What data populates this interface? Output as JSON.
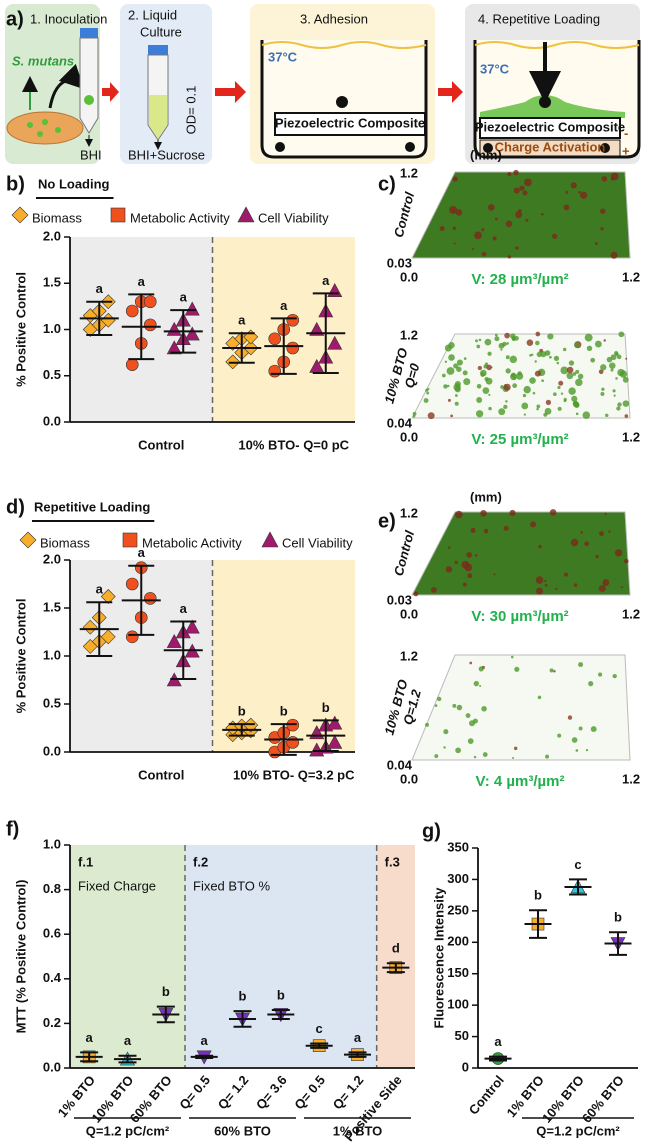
{
  "diagram": {
    "label": "a)",
    "step1": "1. Inoculation",
    "organism": "S. mutans",
    "medium1": "BHI",
    "step2_line1": "2. Liquid",
    "step2_line2": "Culture",
    "od": "OD= 0.1",
    "medium2": "BHI+Sucrose",
    "step3": "3. Adhesion",
    "temp3": "37°C",
    "composite3": "Piezoelectric Composite",
    "step4": "4. Repetitive Loading",
    "temp4": "37°C",
    "composite4": "Piezoelectric Composite",
    "activation": "Charge Activation",
    "minus": "-",
    "plus": "+"
  },
  "images": [
    {
      "label": "c)",
      "unit": "(mm)",
      "views": [
        {
          "name": [
            "Control"
          ],
          "top": "1.2",
          "bottom": "0.03",
          "left": "0.0",
          "right": "1.2",
          "volume": "V: 28 µm³/µm²"
        },
        {
          "name": [
            "10% BTO",
            "Q=0"
          ],
          "top": "1.2",
          "bottom": "0.04",
          "left": "0.0",
          "right": "1.2",
          "volume": "V: 25 µm³/µm²"
        }
      ]
    },
    {
      "label": "e)",
      "unit": "(mm)",
      "views": [
        {
          "name": [
            "Control"
          ],
          "top": "1.2",
          "bottom": "0.03",
          "left": "0.0",
          "right": "1.2",
          "volume": "V: 30 µm³/µm²"
        },
        {
          "name": [
            "10% BTO",
            "Q=1.2"
          ],
          "top": "1.2",
          "bottom": "0.04",
          "left": "0.0",
          "right": "1.2",
          "volume": "V: 4 µm³/µm²"
        }
      ]
    }
  ],
  "chart_data": [
    {
      "type": "dotplot",
      "panel": "b)",
      "title": "No Loading",
      "ylabel": "% Positive Control",
      "categories": [
        "Control",
        "10% BTO- Q=0 pC"
      ],
      "background_colors": [
        "#ececec",
        "#fdf0c8"
      ],
      "ylim": [
        0,
        2
      ],
      "yticks": [
        {
          "value": 0,
          "label": "0.0"
        },
        0.5,
        {
          "value": 1,
          "label": "1.0"
        },
        1.5,
        {
          "value": 2,
          "label": "2.0"
        }
      ],
      "series": [
        {
          "name": "Biomass",
          "color": "#f8ae2b",
          "marker": "diamond",
          "values": [
            1.12,
            0.8
          ],
          "errors": [
            0.18,
            0.16
          ],
          "letters": [
            "a",
            "a"
          ],
          "points": [
            [
              1.0,
              1.05,
              1.1,
              1.15,
              1.2,
              1.3
            ],
            [
              0.65,
              0.75,
              0.8,
              0.85,
              0.9,
              0.92
            ]
          ]
        },
        {
          "name": "Metabolic Activity",
          "color": "#f0501e",
          "marker": "circle",
          "values": [
            1.03,
            0.82
          ],
          "errors": [
            0.35,
            0.3
          ],
          "letters": [
            "a",
            "a"
          ],
          "points": [
            [
              0.62,
              0.85,
              1.05,
              1.2,
              1.3,
              1.3
            ],
            [
              0.55,
              0.65,
              0.8,
              0.9,
              1.0,
              1.1
            ]
          ]
        },
        {
          "name": "Cell Viability",
          "color": "#a01a6b",
          "marker": "triangle",
          "values": [
            0.98,
            0.96
          ],
          "errors": [
            0.23,
            0.43
          ],
          "letters": [
            "a",
            "a"
          ],
          "points": [
            [
              0.8,
              0.9,
              0.95,
              1.0,
              1.1,
              1.22
            ],
            [
              0.6,
              0.7,
              0.85,
              1.0,
              1.2,
              1.42
            ]
          ]
        }
      ]
    },
    {
      "type": "dotplot",
      "panel": "d)",
      "title": "Repetitive Loading",
      "ylabel": "% Positive Control",
      "categories": [
        "Control",
        "10% BTO- Q=3.2 pC"
      ],
      "background_colors": [
        "#ececec",
        "#fdf0c8"
      ],
      "ylim": [
        0,
        2
      ],
      "yticks": [
        {
          "value": 0,
          "label": "0.0"
        },
        0.5,
        {
          "value": 1,
          "label": "1.0"
        },
        1.5,
        {
          "value": 2,
          "label": "2.0"
        }
      ],
      "series": [
        {
          "name": "Biomass",
          "color": "#f8ae2b",
          "marker": "diamond",
          "values": [
            1.28,
            0.23
          ],
          "errors": [
            0.28,
            0.06
          ],
          "letters": [
            "a",
            "b"
          ],
          "points": [
            [
              1.1,
              1.15,
              1.2,
              1.3,
              1.4,
              1.62
            ],
            [
              0.18,
              0.2,
              0.22,
              0.25,
              0.27,
              0.28
            ]
          ]
        },
        {
          "name": "Metabolic Activity",
          "color": "#f0501e",
          "marker": "circle",
          "values": [
            1.58,
            0.13
          ],
          "errors": [
            0.36,
            0.16
          ],
          "letters": [
            "a",
            "b"
          ],
          "points": [
            [
              1.2,
              1.4,
              1.6,
              1.75,
              1.92
            ],
            [
              0.0,
              0.05,
              0.1,
              0.15,
              0.2,
              0.28
            ]
          ]
        },
        {
          "name": "Cell Viability",
          "color": "#a01a6b",
          "marker": "triangle",
          "values": [
            1.06,
            0.17
          ],
          "errors": [
            0.3,
            0.16
          ],
          "letters": [
            "a",
            "b"
          ],
          "points": [
            [
              0.75,
              0.95,
              1.05,
              1.15,
              1.25,
              1.3
            ],
            [
              0.02,
              0.05,
              0.1,
              0.2,
              0.28,
              0.3
            ]
          ]
        }
      ]
    },
    {
      "type": "errorplot",
      "panel": "f)",
      "ylabel": "MTT (% Positive Control)",
      "sections": [
        {
          "title": "f.1",
          "subtitle": "Fixed Charge",
          "color": "#dcebd0"
        },
        {
          "title": "f.2",
          "subtitle": "Fixed BTO %",
          "color": "#dce6f3"
        },
        {
          "title": "f.3",
          "color": "#f8dccb"
        }
      ],
      "groups": [
        "Q=1.2 pC/cm²",
        "60% BTO",
        "1% BTO"
      ],
      "categories": [
        "1% BTO",
        "10% BTO",
        "60% BTO",
        "Q= 0.5",
        "Q= 1.2",
        "Q= 3.6",
        "Q= 0.5",
        "Q= 1.2",
        "Positive Side"
      ],
      "values": [
        0.05,
        0.04,
        0.24,
        0.05,
        0.22,
        0.24,
        0.1,
        0.06,
        0.45
      ],
      "errors": [
        0.02,
        0.015,
        0.035,
        0.005,
        0.035,
        0.02,
        0.01,
        0.01,
        0.02
      ],
      "letters": [
        "a",
        "a",
        "b",
        "a",
        "b",
        "b",
        "c",
        "a",
        "d"
      ],
      "colors": [
        "#f8ae2b",
        "#33c3d6",
        "#7b2fbe",
        "#7b2fbe",
        "#7b2fbe",
        "#7b2fbe",
        "#f8ae2b",
        "#f8ae2b",
        "#f8ae2b"
      ],
      "markers": [
        "square",
        "triangle",
        "down",
        "down",
        "down",
        "down",
        "square",
        "square",
        "square"
      ],
      "ylim": [
        0,
        1
      ],
      "yticks": [
        {
          "value": 0,
          "label": "0.0"
        },
        0.2,
        0.4,
        0.6,
        0.8,
        {
          "value": 1,
          "label": "1.0"
        }
      ]
    },
    {
      "type": "errorplot",
      "panel": "g)",
      "ylabel": "Fluorescence Intensity",
      "groups": [
        "Q=1.2 pC/cm²"
      ],
      "categories": [
        "Control",
        "1% BTO",
        "10% BTO",
        "60% BTO"
      ],
      "values": [
        15,
        229,
        288,
        198
      ],
      "errors": [
        3,
        22,
        12,
        18
      ],
      "letters": [
        "a",
        "b",
        "c",
        "b"
      ],
      "colors": [
        "#2e9e3a",
        "#f8ae2b",
        "#33c3d6",
        "#7b2fbe"
      ],
      "markers": [
        "circle",
        "square",
        "triangle",
        "down"
      ],
      "ylim": [
        0,
        350
      ],
      "yticks": [
        0,
        50,
        100,
        150,
        200,
        250,
        300,
        350
      ]
    }
  ]
}
